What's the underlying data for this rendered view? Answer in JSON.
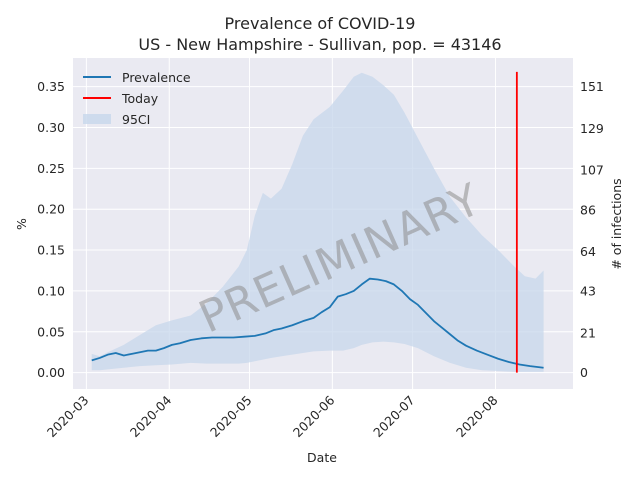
{
  "chart_data": {
    "type": "line",
    "title_line1": "Prevalence of COVID-19",
    "title_line2": "US - New Hampshire - Sullivan, pop. = 43146",
    "xlabel": "Date",
    "ylabel": "%",
    "y2label": "# of infections",
    "x_range": [
      "2020-02-25",
      "2020-08-30"
    ],
    "ylim": [
      -0.02,
      0.385
    ],
    "y_ticks": [
      "0.00",
      "0.05",
      "0.10",
      "0.15",
      "0.20",
      "0.25",
      "0.30",
      "0.35"
    ],
    "y2_ticks": [
      {
        "label": "0",
        "value": 0
      },
      {
        "label": "21",
        "value": 21
      },
      {
        "label": "43",
        "value": 43
      },
      {
        "label": "64",
        "value": 64
      },
      {
        "label": "86",
        "value": 86
      },
      {
        "label": "107",
        "value": 107
      },
      {
        "label": "129",
        "value": 129
      },
      {
        "label": "151",
        "value": 151
      }
    ],
    "y2_per_percent": 431.46,
    "x_ticks": [
      "2020-03",
      "2020-04",
      "2020-05",
      "2020-06",
      "2020-07",
      "2020-08"
    ],
    "grid": true,
    "legend_position": "top-left",
    "legend": [
      "Prevalence",
      "Today",
      "95CI"
    ],
    "today": "2020-08-09",
    "today_y_range": [
      0,
      0.368
    ],
    "colors": {
      "prevalence": "#1f77b4",
      "today": "#ff0000",
      "ci": "#c7d7eb",
      "background": "#eaeaf2",
      "grid": "#ffffff"
    },
    "watermark": "PRELIMINARY",
    "series": [
      {
        "name": "Prevalence",
        "x": [
          "2020-03-03",
          "2020-03-06",
          "2020-03-09",
          "2020-03-12",
          "2020-03-15",
          "2020-03-18",
          "2020-03-21",
          "2020-03-24",
          "2020-03-27",
          "2020-03-30",
          "2020-04-02",
          "2020-04-05",
          "2020-04-09",
          "2020-04-13",
          "2020-04-17",
          "2020-04-21",
          "2020-04-25",
          "2020-04-29",
          "2020-05-03",
          "2020-05-07",
          "2020-05-10",
          "2020-05-13",
          "2020-05-17",
          "2020-05-21",
          "2020-05-25",
          "2020-05-28",
          "2020-05-31",
          "2020-06-03",
          "2020-06-06",
          "2020-06-09",
          "2020-06-12",
          "2020-06-15",
          "2020-06-18",
          "2020-06-21",
          "2020-06-24",
          "2020-06-27",
          "2020-06-30",
          "2020-07-03",
          "2020-07-06",
          "2020-07-09",
          "2020-07-12",
          "2020-07-15",
          "2020-07-18",
          "2020-07-21",
          "2020-07-25",
          "2020-07-29",
          "2020-08-02",
          "2020-08-06",
          "2020-08-10",
          "2020-08-14",
          "2020-08-19"
        ],
        "y": [
          0.015,
          0.018,
          0.022,
          0.024,
          0.021,
          0.023,
          0.025,
          0.027,
          0.027,
          0.03,
          0.034,
          0.036,
          0.04,
          0.042,
          0.043,
          0.043,
          0.043,
          0.044,
          0.045,
          0.048,
          0.052,
          0.054,
          0.058,
          0.063,
          0.067,
          0.074,
          0.08,
          0.093,
          0.096,
          0.1,
          0.108,
          0.115,
          0.114,
          0.112,
          0.108,
          0.1,
          0.09,
          0.083,
          0.073,
          0.063,
          0.055,
          0.047,
          0.039,
          0.033,
          0.027,
          0.022,
          0.017,
          0.013,
          0.01,
          0.008,
          0.006
        ]
      },
      {
        "name": "95CI",
        "x": [
          "2020-03-03",
          "2020-03-06",
          "2020-03-09",
          "2020-03-15",
          "2020-03-21",
          "2020-03-27",
          "2020-04-02",
          "2020-04-09",
          "2020-04-15",
          "2020-04-21",
          "2020-04-27",
          "2020-04-30",
          "2020-05-03",
          "2020-05-06",
          "2020-05-09",
          "2020-05-13",
          "2020-05-17",
          "2020-05-21",
          "2020-05-25",
          "2020-05-31",
          "2020-06-05",
          "2020-06-09",
          "2020-06-12",
          "2020-06-16",
          "2020-06-20",
          "2020-06-24",
          "2020-06-28",
          "2020-07-03",
          "2020-07-09",
          "2020-07-15",
          "2020-07-21",
          "2020-07-27",
          "2020-08-02",
          "2020-08-08",
          "2020-08-12",
          "2020-08-16",
          "2020-08-19"
        ],
        "upper": [
          0.023,
          0.02,
          0.025,
          0.034,
          0.046,
          0.058,
          0.064,
          0.07,
          0.085,
          0.105,
          0.13,
          0.15,
          0.192,
          0.22,
          0.213,
          0.225,
          0.255,
          0.29,
          0.31,
          0.325,
          0.345,
          0.362,
          0.367,
          0.362,
          0.352,
          0.34,
          0.318,
          0.287,
          0.25,
          0.215,
          0.19,
          0.168,
          0.15,
          0.13,
          0.118,
          0.115,
          0.125
        ],
        "lower": [
          0.003,
          0.003,
          0.004,
          0.006,
          0.008,
          0.009,
          0.01,
          0.012,
          0.011,
          0.011,
          0.011,
          0.012,
          0.014,
          0.016,
          0.018,
          0.02,
          0.022,
          0.024,
          0.026,
          0.027,
          0.027,
          0.03,
          0.034,
          0.037,
          0.038,
          0.037,
          0.035,
          0.03,
          0.02,
          0.012,
          0.006,
          0.003,
          0.002,
          0.001,
          0.001,
          0.001,
          0.001
        ]
      }
    ]
  }
}
